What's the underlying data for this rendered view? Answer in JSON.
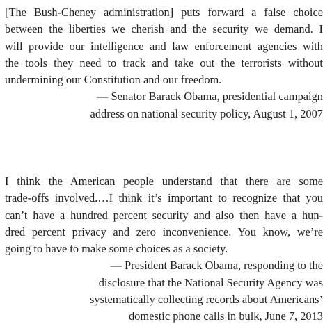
{
  "quotes": [
    {
      "lines": [
        "[The Bush-Cheney administration] puts forward a false choice",
        "between the liberties we cherish and the security we demand. I",
        "will provide our intelligence and law enforcement agencies with",
        "the tools they need to track and take out the terrorists without",
        "undermining our Constitution and our freedom."
      ],
      "attribution_lines": [
        "— Senator Barack Obama, presidential campaign",
        "address on national security policy, August 1, 2007"
      ]
    },
    {
      "lines": [
        "I think the American people understand that there are some",
        "trade-offs involved.…I think it’s important to recognize that you",
        "can’t have a hundred percent security and also then have a hun-",
        "dred percent privacy and zero inconvenience. You know, we’re",
        "going to have to make some choices as a society."
      ],
      "attribution_lines": [
        "— President Barack Obama, responding to the",
        "disclosure that the National Security Agency was",
        "systematically collecting records about Americans’",
        "domestic phone calls in bulk, June 7, 2013"
      ]
    }
  ]
}
